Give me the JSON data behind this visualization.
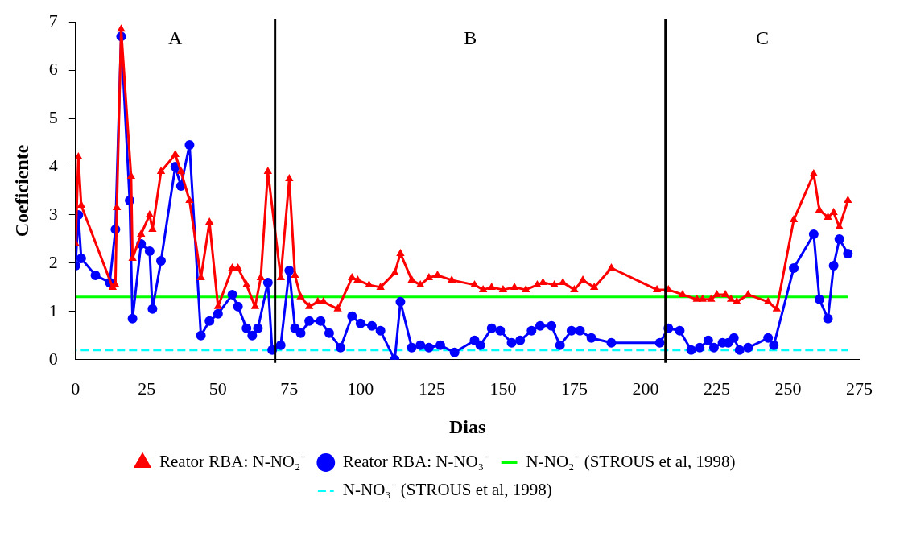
{
  "chart_data": {
    "type": "line",
    "xlabel": "Dias",
    "ylabel": "Coeficiente",
    "xlim": [
      0,
      275
    ],
    "xticks": [
      0,
      25,
      50,
      75,
      100,
      125,
      150,
      175,
      200,
      225,
      250,
      275
    ],
    "ylim": [
      0,
      7
    ],
    "yticks": [
      0,
      1,
      2,
      3,
      4,
      5,
      6,
      7
    ],
    "grid": false,
    "legend": "bottom",
    "ref_lines": [
      {
        "axis": "x",
        "value": 70,
        "color": "#000000"
      },
      {
        "axis": "x",
        "value": 207,
        "color": "#000000"
      }
    ],
    "annotations": [
      "A",
      "B",
      "C"
    ],
    "series": [
      {
        "name": "Reator RBA: N-NO₂⁻",
        "color": "#ff0000",
        "marker": "triangle",
        "line_style": "solid",
        "x": [
          0,
          1,
          2,
          13,
          14,
          14.5,
          16,
          19.5,
          20,
          23,
          26,
          27,
          30,
          35,
          37,
          40,
          44,
          47,
          50,
          55,
          57,
          60,
          63,
          65,
          67.5,
          72,
          75,
          77,
          79,
          82,
          85,
          87,
          92,
          97,
          99,
          103,
          107,
          112,
          114,
          118,
          121,
          124,
          127,
          132,
          140,
          143,
          146,
          150,
          154,
          158,
          162,
          164,
          168,
          171,
          175,
          178,
          182,
          188,
          204,
          208,
          213,
          218,
          220,
          223,
          225,
          228,
          230,
          232,
          236,
          243,
          246,
          252,
          259,
          261,
          264,
          266,
          268,
          271
        ],
        "values": [
          2.4,
          4.2,
          3.2,
          1.5,
          1.55,
          3.15,
          6.85,
          3.8,
          2.1,
          2.6,
          3.0,
          2.7,
          3.9,
          4.25,
          3.9,
          3.3,
          1.7,
          2.85,
          1.1,
          1.9,
          1.9,
          1.55,
          1.1,
          1.7,
          3.9,
          1.7,
          3.75,
          1.75,
          1.3,
          1.1,
          1.2,
          1.2,
          1.05,
          1.7,
          1.65,
          1.55,
          1.5,
          1.8,
          2.2,
          1.65,
          1.55,
          1.7,
          1.75,
          1.65,
          1.55,
          1.45,
          1.5,
          1.45,
          1.5,
          1.45,
          1.55,
          1.6,
          1.55,
          1.6,
          1.45,
          1.65,
          1.5,
          1.9,
          1.45,
          1.45,
          1.35,
          1.25,
          1.25,
          1.25,
          1.35,
          1.35,
          1.25,
          1.2,
          1.35,
          1.2,
          1.05,
          2.9,
          3.85,
          3.1,
          2.95,
          3.05,
          2.75,
          3.3
        ]
      },
      {
        "name": "Reator RBA: N-NO₃⁻",
        "color": "#0000ff",
        "marker": "circle",
        "line_style": "solid",
        "x": [
          0,
          1,
          2,
          7,
          12,
          14,
          16,
          19,
          20,
          23,
          26,
          27,
          30,
          35,
          37,
          40,
          44,
          47,
          50,
          55,
          57,
          60,
          62,
          64,
          67.5,
          69,
          72,
          75,
          77,
          79,
          82,
          86,
          89,
          93,
          97,
          100,
          104,
          107,
          112,
          114,
          118,
          121,
          124,
          128,
          133,
          140,
          142,
          146,
          149,
          153,
          156,
          160,
          163,
          167,
          170,
          174,
          177,
          181,
          188,
          205,
          208,
          212,
          216,
          219,
          222,
          224,
          227,
          229,
          231,
          233,
          236,
          243,
          245,
          252,
          259,
          261,
          264,
          266,
          268,
          271
        ],
        "values": [
          1.95,
          3.0,
          2.1,
          1.75,
          1.6,
          2.7,
          6.7,
          3.3,
          0.85,
          2.4,
          2.25,
          1.05,
          2.05,
          4.0,
          3.6,
          4.45,
          0.5,
          0.8,
          0.95,
          1.35,
          1.1,
          0.65,
          0.5,
          0.65,
          1.6,
          0.2,
          0.3,
          1.85,
          0.65,
          0.55,
          0.8,
          0.8,
          0.55,
          0.25,
          0.9,
          0.75,
          0.7,
          0.6,
          0.0,
          1.2,
          0.25,
          0.3,
          0.25,
          0.3,
          0.15,
          0.4,
          0.3,
          0.65,
          0.6,
          0.35,
          0.4,
          0.6,
          0.7,
          0.7,
          0.3,
          0.6,
          0.6,
          0.45,
          0.35,
          0.35,
          0.65,
          0.6,
          0.2,
          0.25,
          0.4,
          0.25,
          0.35,
          0.35,
          0.45,
          0.2,
          0.25,
          0.45,
          0.3,
          1.9,
          2.6,
          1.25,
          0.85,
          1.95,
          2.5,
          2.2
        ]
      },
      {
        "name": "N-NO₂⁻ (STROUS et al, 1998)",
        "color": "#00ff00",
        "marker": "none",
        "line_style": "solid",
        "x": [
          0,
          271
        ],
        "values": [
          1.3,
          1.3
        ]
      },
      {
        "name": "N-NO₃⁻ (STROUS et al, 1998)",
        "color": "#00ffff",
        "marker": "none",
        "line_style": "dashed",
        "x": [
          0,
          271
        ],
        "values": [
          0.2,
          0.2
        ]
      }
    ]
  }
}
